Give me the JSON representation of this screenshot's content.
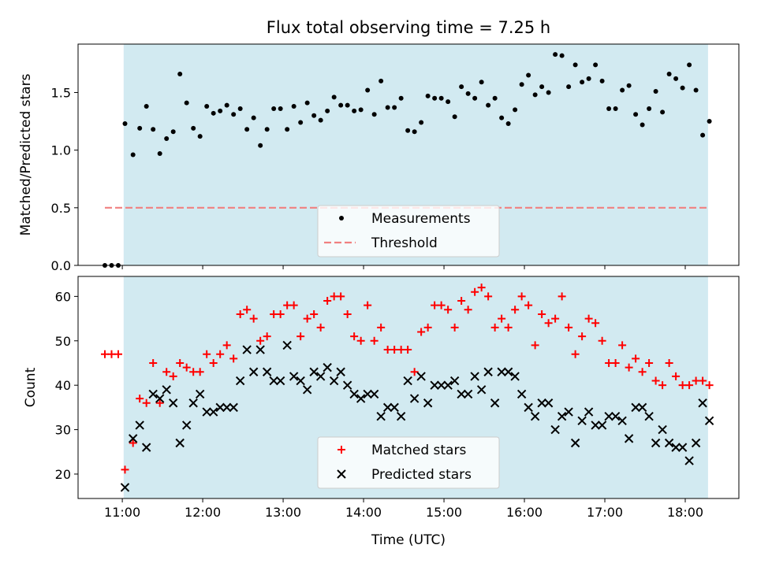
{
  "title": "Flux total observing time = 7.25 h",
  "xlabel": "Time (UTC)",
  "chart_data": [
    {
      "type": "scatter",
      "ylabel": "Matched/Predicted stars",
      "xlim": [
        "10:27",
        "18:40"
      ],
      "ylim": [
        0,
        1.92
      ],
      "yticks": [
        "0.0",
        "0.5",
        "1.0",
        "1.5"
      ],
      "shaded_region": {
        "start": "11:01",
        "end": "18:17",
        "color": "#add8e6"
      },
      "grid": false,
      "legend_position": "lower center",
      "series": [
        {
          "name": "Measurements",
          "marker": "dot",
          "color": "#000000",
          "x": [
            "10:47",
            "10:52",
            "10:57",
            "11:02",
            "11:08",
            "11:13",
            "11:18",
            "11:23",
            "11:28",
            "11:33",
            "11:38",
            "11:43",
            "11:48",
            "11:53",
            "11:58",
            "12:03",
            "12:08",
            "12:13",
            "12:18",
            "12:23",
            "12:28",
            "12:33",
            "12:38",
            "12:43",
            "12:48",
            "12:53",
            "12:58",
            "13:03",
            "13:08",
            "13:13",
            "13:18",
            "13:23",
            "13:28",
            "13:33",
            "13:38",
            "13:43",
            "13:48",
            "13:53",
            "13:58",
            "14:03",
            "14:08",
            "14:13",
            "14:18",
            "14:23",
            "14:28",
            "14:33",
            "14:38",
            "14:43",
            "14:48",
            "14:53",
            "14:58",
            "15:03",
            "15:08",
            "15:13",
            "15:18",
            "15:23",
            "15:28",
            "15:33",
            "15:38",
            "15:43",
            "15:48",
            "15:53",
            "15:58",
            "16:03",
            "16:08",
            "16:13",
            "16:18",
            "16:23",
            "16:28",
            "16:33",
            "16:38",
            "16:43",
            "16:48",
            "16:53",
            "16:58",
            "17:03",
            "17:08",
            "17:13",
            "17:18",
            "17:23",
            "17:28",
            "17:33",
            "17:38",
            "17:43",
            "17:48",
            "17:53",
            "17:58",
            "18:03",
            "18:08",
            "18:13",
            "18:18"
          ],
          "y": [
            0.0,
            0.0,
            0.0,
            1.23,
            0.96,
            1.19,
            1.38,
            1.18,
            0.97,
            1.1,
            1.16,
            1.66,
            1.41,
            1.19,
            1.12,
            1.38,
            1.32,
            1.34,
            1.39,
            1.31,
            1.36,
            1.18,
            1.28,
            1.04,
            1.18,
            1.36,
            1.36,
            1.18,
            1.38,
            1.24,
            1.41,
            1.3,
            1.26,
            1.34,
            1.46,
            1.39,
            1.39,
            1.34,
            1.35,
            1.52,
            1.31,
            1.6,
            1.37,
            1.37,
            1.45,
            1.17,
            1.16,
            1.24,
            1.47,
            1.45,
            1.45,
            1.42,
            1.29,
            1.55,
            1.49,
            1.45,
            1.59,
            1.39,
            1.45,
            1.28,
            1.23,
            1.35,
            1.57,
            1.65,
            1.48,
            1.55,
            1.5,
            1.83,
            1.82,
            1.55,
            1.74,
            1.59,
            1.62,
            1.74,
            1.6,
            1.36,
            1.36,
            1.52,
            1.56,
            1.31,
            1.22,
            1.36,
            1.51,
            1.33,
            1.66,
            1.62,
            1.54,
            1.74,
            1.52,
            1.13,
            1.25
          ]
        },
        {
          "name": "Threshold",
          "type": "line",
          "style": "dashed",
          "color": "#f08080",
          "x": [
            "10:47",
            "18:17"
          ],
          "y": [
            0.5,
            0.5
          ]
        }
      ]
    },
    {
      "type": "scatter",
      "ylabel": "Count",
      "xlim": [
        "10:27",
        "18:40"
      ],
      "ylim": [
        14.5,
        64.5
      ],
      "yticks": [
        "20",
        "30",
        "40",
        "50",
        "60"
      ],
      "xticks": [
        "11:00",
        "12:00",
        "13:00",
        "14:00",
        "15:00",
        "16:00",
        "17:00",
        "18:00"
      ],
      "shaded_region": {
        "start": "11:01",
        "end": "18:17",
        "color": "#add8e6"
      },
      "grid": false,
      "legend_position": "lower center",
      "series": [
        {
          "name": "Matched stars",
          "marker": "plus",
          "color": "#ff0000",
          "x": [
            "10:47",
            "10:52",
            "10:57",
            "11:02",
            "11:08",
            "11:13",
            "11:18",
            "11:23",
            "11:28",
            "11:33",
            "11:38",
            "11:43",
            "11:48",
            "11:53",
            "11:58",
            "12:03",
            "12:08",
            "12:13",
            "12:18",
            "12:23",
            "12:28",
            "12:33",
            "12:38",
            "12:43",
            "12:48",
            "12:53",
            "12:58",
            "13:03",
            "13:08",
            "13:13",
            "13:18",
            "13:23",
            "13:28",
            "13:33",
            "13:38",
            "13:43",
            "13:48",
            "13:53",
            "13:58",
            "14:03",
            "14:08",
            "14:13",
            "14:18",
            "14:23",
            "14:28",
            "14:33",
            "14:38",
            "14:43",
            "14:48",
            "14:53",
            "14:58",
            "15:03",
            "15:08",
            "15:13",
            "15:18",
            "15:23",
            "15:28",
            "15:33",
            "15:38",
            "15:43",
            "15:48",
            "15:53",
            "15:58",
            "16:03",
            "16:08",
            "16:13",
            "16:18",
            "16:23",
            "16:28",
            "16:33",
            "16:38",
            "16:43",
            "16:48",
            "16:53",
            "16:58",
            "17:03",
            "17:08",
            "17:13",
            "17:18",
            "17:23",
            "17:28",
            "17:33",
            "17:38",
            "17:43",
            "17:48",
            "17:53",
            "17:58",
            "18:03",
            "18:08",
            "18:13",
            "18:18"
          ],
          "y": [
            47,
            47,
            47,
            21,
            27,
            37,
            36,
            45,
            36,
            43,
            42,
            45,
            44,
            43,
            43,
            47,
            45,
            47,
            49,
            46,
            56,
            57,
            55,
            50,
            51,
            56,
            56,
            58,
            58,
            51,
            55,
            56,
            53,
            59,
            60,
            60,
            56,
            51,
            50,
            58,
            50,
            53,
            48,
            48,
            48,
            48,
            43,
            52,
            53,
            58,
            58,
            57,
            53,
            59,
            57,
            61,
            62,
            60,
            53,
            55,
            53,
            57,
            60,
            58,
            49,
            56,
            54,
            55,
            60,
            53,
            47,
            51,
            55,
            54,
            50,
            45,
            45,
            49,
            44,
            46,
            43,
            45,
            41,
            40,
            45,
            42,
            40,
            40,
            41,
            41,
            40
          ]
        },
        {
          "name": "Predicted stars",
          "marker": "x",
          "color": "#000000",
          "x": [
            "11:02",
            "11:08",
            "11:13",
            "11:18",
            "11:23",
            "11:28",
            "11:33",
            "11:38",
            "11:43",
            "11:48",
            "11:53",
            "11:58",
            "12:03",
            "12:08",
            "12:13",
            "12:18",
            "12:23",
            "12:28",
            "12:33",
            "12:38",
            "12:43",
            "12:48",
            "12:53",
            "12:58",
            "13:03",
            "13:08",
            "13:13",
            "13:18",
            "13:23",
            "13:28",
            "13:33",
            "13:38",
            "13:43",
            "13:48",
            "13:53",
            "13:58",
            "14:03",
            "14:08",
            "14:13",
            "14:18",
            "14:23",
            "14:28",
            "14:33",
            "14:38",
            "14:43",
            "14:48",
            "14:53",
            "14:58",
            "15:03",
            "15:08",
            "15:13",
            "15:18",
            "15:23",
            "15:28",
            "15:33",
            "15:38",
            "15:43",
            "15:48",
            "15:53",
            "15:58",
            "16:03",
            "16:08",
            "16:13",
            "16:18",
            "16:23",
            "16:28",
            "16:33",
            "16:38",
            "16:43",
            "16:48",
            "16:53",
            "16:58",
            "17:03",
            "17:08",
            "17:13",
            "17:18",
            "17:23",
            "17:28",
            "17:33",
            "17:38",
            "17:43",
            "17:48",
            "17:53",
            "17:58",
            "18:03",
            "18:08",
            "18:13",
            "18:18"
          ],
          "y": [
            17,
            28,
            31,
            26,
            38,
            37,
            39,
            36,
            27,
            31,
            36,
            38,
            34,
            34,
            35,
            35,
            35,
            41,
            48,
            43,
            48,
            43,
            41,
            41,
            49,
            42,
            41,
            39,
            43,
            42,
            44,
            41,
            43,
            40,
            38,
            37,
            38,
            38,
            33,
            35,
            35,
            33,
            41,
            37,
            42,
            36,
            40,
            40,
            40,
            41,
            38,
            38,
            42,
            39,
            43,
            36,
            43,
            43,
            42,
            38,
            35,
            33,
            36,
            36,
            30,
            33,
            34,
            27,
            32,
            34,
            31,
            31,
            33,
            33,
            32,
            28,
            35,
            35,
            33,
            27,
            30,
            27,
            26,
            26,
            23,
            27,
            36,
            32
          ]
        }
      ]
    }
  ]
}
